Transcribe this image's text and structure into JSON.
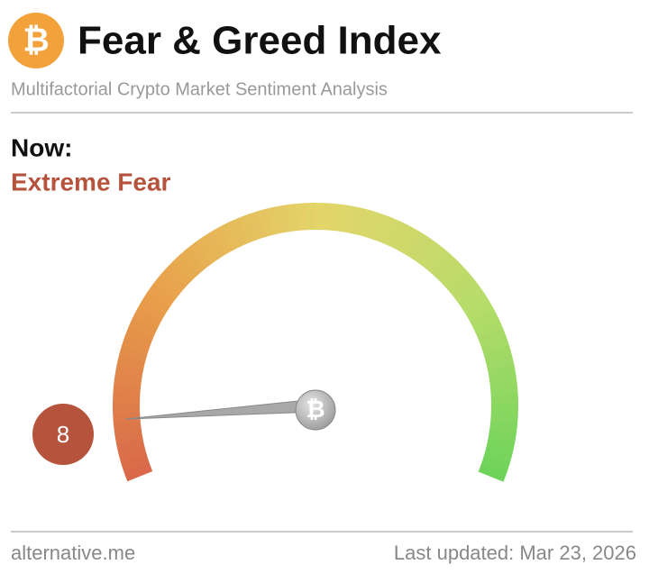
{
  "chart_data": {
    "type": "gauge",
    "logo": "₿",
    "title": "Fear & Greed Index",
    "subtitle": "Multifactorial Crypto Market Sentiment Analysis",
    "label": "Now:",
    "classification": "Extreme Fear",
    "classification_color": "#b5533c",
    "value": 8,
    "ylim": [
      0,
      100
    ],
    "source": "alternative.me",
    "updated": "Last updated: Mar 23, 2026"
  }
}
